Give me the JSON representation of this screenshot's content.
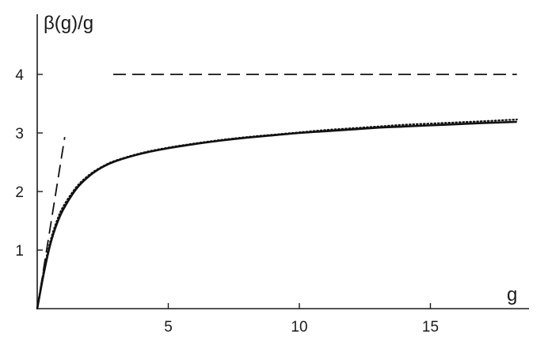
{
  "chart_data": {
    "type": "line",
    "title": "",
    "xlabel": "g",
    "ylabel": "β(g)/g",
    "xlim": [
      0,
      18.4
    ],
    "ylim": [
      0,
      4.7
    ],
    "x_ticks": [
      5,
      10,
      15
    ],
    "y_ticks": [
      1,
      2,
      3,
      4
    ],
    "x_tick_labels": [
      "5",
      "10",
      "15"
    ],
    "y_tick_labels": [
      "1",
      "2",
      "3",
      "4"
    ],
    "grid": false,
    "legend": "none",
    "series": [
      {
        "style": "solid",
        "x": [
          0,
          0.25,
          0.5,
          0.75,
          1,
          1.5,
          2,
          2.5,
          3,
          4,
          5,
          6,
          7,
          8,
          9,
          10,
          11,
          12,
          13,
          14,
          15,
          16,
          17,
          18.3
        ],
        "y": [
          0,
          0.6,
          1.1,
          1.45,
          1.7,
          2.05,
          2.27,
          2.42,
          2.52,
          2.65,
          2.74,
          2.81,
          2.87,
          2.92,
          2.96,
          3.0,
          3.03,
          3.06,
          3.09,
          3.11,
          3.13,
          3.15,
          3.17,
          3.19
        ]
      },
      {
        "style": "dotted",
        "x": [
          0,
          0.25,
          0.5,
          0.75,
          1,
          1.5,
          2,
          2.5,
          3,
          4,
          5,
          6,
          7,
          8,
          9,
          10,
          11,
          12,
          13,
          14,
          15,
          16,
          17,
          18.3
        ],
        "y": [
          0,
          0.65,
          1.15,
          1.5,
          1.75,
          2.08,
          2.29,
          2.43,
          2.53,
          2.66,
          2.75,
          2.82,
          2.88,
          2.93,
          2.97,
          3.01,
          3.05,
          3.08,
          3.11,
          3.14,
          3.16,
          3.18,
          3.2,
          3.23
        ]
      },
      {
        "style": "dashed",
        "x": [
          0,
          1.05
        ],
        "y": [
          0,
          2.93
        ]
      },
      {
        "style": "dashed",
        "x": [
          2.9,
          18.3
        ],
        "y": [
          4.0,
          4.0
        ]
      }
    ]
  }
}
